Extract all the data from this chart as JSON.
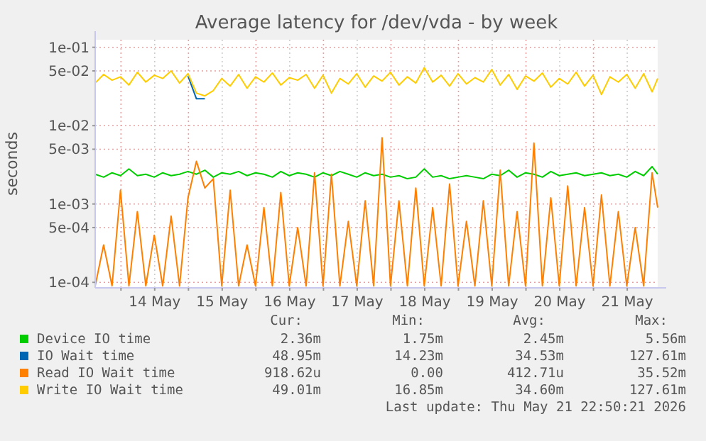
{
  "chart_data": {
    "type": "line",
    "title": "Average latency for /dev/vda - by week",
    "ylabel": "seconds",
    "log": "y",
    "grid": true,
    "legend": "bottom",
    "marker": "none",
    "line_style": "solid",
    "xlim": [
      "2026-05-13T14:50",
      "2026-05-21T22:50"
    ],
    "xticks": [
      {
        "value": "2026-05-14T00:00",
        "label": null
      },
      {
        "value": "2026-05-14T12:00",
        "label": "14 May"
      },
      {
        "value": "2026-05-15T00:00",
        "label": null
      },
      {
        "value": "2026-05-15T12:00",
        "label": "15 May"
      },
      {
        "value": "2026-05-16T00:00",
        "label": null
      },
      {
        "value": "2026-05-16T12:00",
        "label": "16 May"
      },
      {
        "value": "2026-05-17T00:00",
        "label": null
      },
      {
        "value": "2026-05-17T12:00",
        "label": "17 May"
      },
      {
        "value": "2026-05-18T00:00",
        "label": null
      },
      {
        "value": "2026-05-18T12:00",
        "label": "18 May"
      },
      {
        "value": "2026-05-19T00:00",
        "label": null
      },
      {
        "value": "2026-05-19T12:00",
        "label": "19 May"
      },
      {
        "value": "2026-05-20T00:00",
        "label": null
      },
      {
        "value": "2026-05-20T12:00",
        "label": "20 May"
      },
      {
        "value": "2026-05-21T00:00",
        "label": null
      },
      {
        "value": "2026-05-21T12:00",
        "label": "21 May"
      }
    ],
    "ylim": [
      8.5e-05,
      0.125
    ],
    "yticks": [
      {
        "value": 0.0001,
        "label": "1e-04"
      },
      {
        "value": 0.0005,
        "label": "5e-04"
      },
      {
        "value": 0.001,
        "label": "1e-03"
      },
      {
        "value": 0.005,
        "label": "5e-03"
      },
      {
        "value": 0.01,
        "label": "1e-02"
      },
      {
        "value": 0.05,
        "label": "5e-02"
      },
      {
        "value": 0.1,
        "label": "1e-01"
      }
    ],
    "x": [
      "2026-05-13T14:50",
      "2026-05-13T17:50",
      "2026-05-13T20:50",
      "2026-05-13T23:50",
      "2026-05-14T02:50",
      "2026-05-14T05:50",
      "2026-05-14T08:50",
      "2026-05-14T11:50",
      "2026-05-14T14:50",
      "2026-05-14T17:50",
      "2026-05-14T20:50",
      "2026-05-14T23:50",
      "2026-05-15T02:50",
      "2026-05-15T05:50",
      "2026-05-15T08:50",
      "2026-05-15T11:50",
      "2026-05-15T14:50",
      "2026-05-15T17:50",
      "2026-05-15T20:50",
      "2026-05-15T23:50",
      "2026-05-16T02:50",
      "2026-05-16T05:50",
      "2026-05-16T08:50",
      "2026-05-16T11:50",
      "2026-05-16T14:50",
      "2026-05-16T17:50",
      "2026-05-16T20:50",
      "2026-05-16T23:50",
      "2026-05-17T02:50",
      "2026-05-17T05:50",
      "2026-05-17T08:50",
      "2026-05-17T11:50",
      "2026-05-17T14:50",
      "2026-05-17T17:50",
      "2026-05-17T20:50",
      "2026-05-17T23:50",
      "2026-05-18T02:50",
      "2026-05-18T05:50",
      "2026-05-18T08:50",
      "2026-05-18T11:50",
      "2026-05-18T14:50",
      "2026-05-18T17:50",
      "2026-05-18T20:50",
      "2026-05-18T23:50",
      "2026-05-19T02:50",
      "2026-05-19T05:50",
      "2026-05-19T08:50",
      "2026-05-19T11:50",
      "2026-05-19T14:50",
      "2026-05-19T17:50",
      "2026-05-19T20:50",
      "2026-05-19T23:50",
      "2026-05-20T02:50",
      "2026-05-20T05:50",
      "2026-05-20T08:50",
      "2026-05-20T11:50",
      "2026-05-20T14:50",
      "2026-05-20T17:50",
      "2026-05-20T20:50",
      "2026-05-20T23:50",
      "2026-05-21T02:50",
      "2026-05-21T05:50",
      "2026-05-21T08:50",
      "2026-05-21T11:50",
      "2026-05-21T14:50",
      "2026-05-21T17:50",
      "2026-05-21T20:50",
      "2026-05-21T22:50"
    ],
    "series": [
      {
        "name": "Device IO time",
        "color": "#00cc00",
        "values": [
          0.0024,
          0.0022,
          0.0025,
          0.0023,
          0.0028,
          0.0023,
          0.0024,
          0.0022,
          0.0025,
          0.0023,
          0.0024,
          0.0026,
          0.0024,
          0.0027,
          0.0022,
          0.0025,
          0.0024,
          0.0026,
          0.0023,
          0.0025,
          0.0024,
          0.0022,
          0.0026,
          0.0023,
          0.0025,
          0.0024,
          0.0022,
          0.0025,
          0.0023,
          0.0026,
          0.0024,
          0.0022,
          0.0025,
          0.0023,
          0.0024,
          0.0022,
          0.0023,
          0.0021,
          0.0022,
          0.0028,
          0.0022,
          0.0023,
          0.0021,
          0.0022,
          0.0023,
          0.0022,
          0.0021,
          0.0024,
          0.0023,
          0.0027,
          0.0022,
          0.0025,
          0.0024,
          0.0022,
          0.0026,
          0.0023,
          0.0024,
          0.0025,
          0.0023,
          0.0024,
          0.0025,
          0.0023,
          0.0024,
          0.0022,
          0.0026,
          0.0023,
          0.003,
          0.0024
        ]
      },
      {
        "name": "IO Wait time",
        "color": "#0066b3",
        "values": [
          null,
          null,
          null,
          null,
          null,
          null,
          null,
          null,
          null,
          null,
          null,
          0.043,
          0.022,
          0.022,
          null,
          null,
          null,
          null,
          null,
          null,
          null,
          null,
          null,
          null,
          null,
          null,
          null,
          null,
          null,
          null,
          null,
          null,
          null,
          null,
          null,
          null,
          null,
          null,
          null,
          null,
          null,
          null,
          null,
          null,
          null,
          null,
          null,
          null,
          null,
          null,
          null,
          null,
          null,
          null,
          null,
          null,
          null,
          null,
          null,
          null,
          null,
          null,
          null,
          null,
          null,
          null,
          null,
          null
        ]
      },
      {
        "name": "Read IO Wait time",
        "color": "#ff8000",
        "values": [
          9e-05,
          0.0003,
          9e-05,
          0.0015,
          9e-05,
          0.0008,
          9e-05,
          0.0004,
          9e-05,
          0.0007,
          9e-05,
          0.0012,
          0.0035,
          0.0016,
          0.0021,
          9e-05,
          0.0015,
          9e-05,
          0.0003,
          9e-05,
          0.0009,
          9e-05,
          0.0014,
          9e-05,
          0.0005,
          9e-05,
          0.0025,
          9e-05,
          0.0024,
          9e-05,
          0.0006,
          9e-05,
          0.0011,
          9e-05,
          0.007,
          9e-05,
          0.0011,
          9e-05,
          0.0016,
          9e-05,
          0.0009,
          9e-05,
          0.0018,
          9e-05,
          0.0006,
          9e-05,
          0.0011,
          9e-05,
          0.0027,
          9e-05,
          0.0008,
          9e-05,
          0.006,
          9e-05,
          0.0012,
          9e-05,
          0.0017,
          9e-05,
          0.0009,
          9e-05,
          0.0013,
          9e-05,
          0.0008,
          9e-05,
          0.0005,
          9e-05,
          0.0025,
          0.0009
        ]
      },
      {
        "name": "Write IO Wait time",
        "color": "#ffcc00",
        "values": [
          0.035,
          0.045,
          0.038,
          0.042,
          0.033,
          0.048,
          0.036,
          0.044,
          0.04,
          0.05,
          0.035,
          0.046,
          0.026,
          0.024,
          0.028,
          0.04,
          0.032,
          0.045,
          0.03,
          0.042,
          0.036,
          0.047,
          0.033,
          0.041,
          0.038,
          0.045,
          0.03,
          0.044,
          0.026,
          0.04,
          0.034,
          0.046,
          0.031,
          0.043,
          0.037,
          0.048,
          0.033,
          0.042,
          0.035,
          0.055,
          0.036,
          0.044,
          0.032,
          0.046,
          0.034,
          0.041,
          0.036,
          0.052,
          0.033,
          0.045,
          0.029,
          0.043,
          0.037,
          0.047,
          0.031,
          0.04,
          0.034,
          0.048,
          0.032,
          0.044,
          0.025,
          0.042,
          0.036,
          0.045,
          0.03,
          0.046,
          0.027,
          0.04
        ]
      }
    ],
    "annotations": [
      "Cur:",
      "Min:",
      "Avg:",
      "Max:",
      "2.36m",
      "1.75m",
      "2.45m",
      "5.56m",
      "48.95m",
      "14.23m",
      "34.53m",
      "127.61m",
      "918.62u",
      "0.00",
      "412.71u",
      "35.52m",
      "49.01m",
      "16.85m",
      "34.60m",
      "127.61m",
      "Last update: Thu May 21 22:50:21 2026"
    ]
  }
}
